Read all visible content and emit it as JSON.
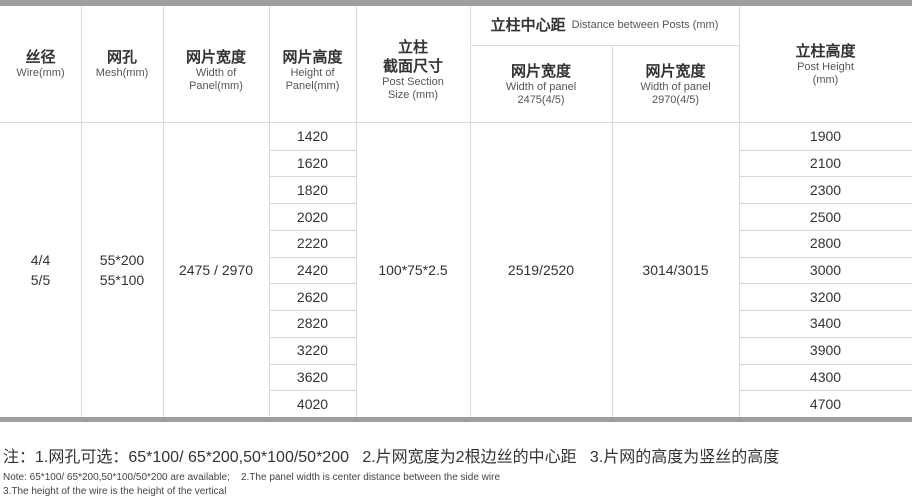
{
  "headers": {
    "wire": {
      "cn": "丝径",
      "en": "Wire(mm)"
    },
    "mesh": {
      "cn": "网孔",
      "en": "Mesh(mm)"
    },
    "panel_width": {
      "cn": "网片宽度",
      "en1": "Width of",
      "en2": "Panel(mm)"
    },
    "panel_height": {
      "cn": "网片高度",
      "en1": "Height of",
      "en2": "Panel(mm)"
    },
    "post_section": {
      "cn1": "立柱",
      "cn2": "截面尺寸",
      "en1": "Post Section",
      "en2": "Size (mm)"
    },
    "distance": {
      "cn": "立柱中心距",
      "en": "Distance between Posts (mm)"
    },
    "dist_a": {
      "cn": "网片宽度",
      "en1": "Width of panel",
      "en2": "2475(4/5)"
    },
    "dist_b": {
      "cn": "网片宽度",
      "en1": "Width of panel",
      "en2": "2970(4/5)"
    },
    "post_height": {
      "cn": "立柱高度",
      "en1": "Post Height",
      "en2": "(mm)"
    }
  },
  "body": {
    "wire": [
      "4/4",
      "5/5"
    ],
    "mesh": [
      "55*200",
      "55*100"
    ],
    "panel_width": "2475 / 2970",
    "panel_heights": [
      "1420",
      "1620",
      "1820",
      "2020",
      "2220",
      "2420",
      "2620",
      "2820",
      "3220",
      "3620",
      "4020"
    ],
    "post_section": "100*75*2.5",
    "dist_a": "2519/2520",
    "dist_b": "3014/3015",
    "post_heights": [
      "1900",
      "2100",
      "2300",
      "2500",
      "2800",
      "3000",
      "3200",
      "3400",
      "3900",
      "4300",
      "4700"
    ]
  },
  "notes": {
    "cn": "注：1.网孔可选：65*100/ 65*200,50*100/50*200   2.片网宽度为2根边丝的中心距   3.片网的高度为竖丝的高度",
    "en1": "Note: 65*100/ 65*200,50*100/50*200 are available;    2.The panel width is center distance between the side wire",
    "en2": "3.The height of the wire is the height of the vertical"
  }
}
